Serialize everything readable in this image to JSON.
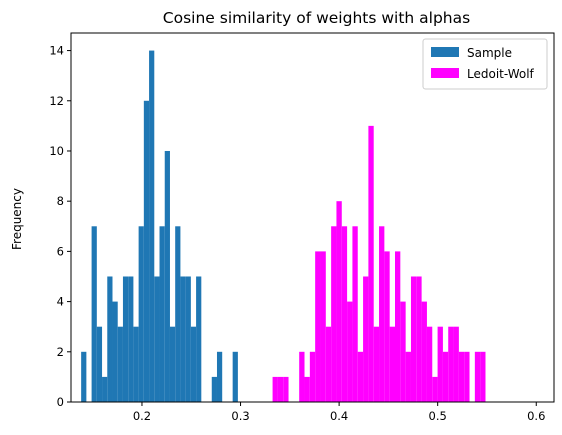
{
  "chart_data": {
    "type": "bar",
    "title": "Cosine similarity of weights with alphas",
    "xlabel": "",
    "ylabel": "Frequency",
    "xlim": [
      0.128,
      0.618
    ],
    "ylim": [
      0,
      14.7
    ],
    "xticks": [
      "0.2",
      "0.3",
      "0.4",
      "0.5",
      "0.6"
    ],
    "yticks": [
      "0",
      "2",
      "4",
      "6",
      "8",
      "10",
      "12",
      "14"
    ],
    "grid": false,
    "legend_position": "top-right",
    "series": [
      {
        "name": "Sample",
        "color": "#1f77b4",
        "bin_start": 0.1383,
        "bin_width": 0.0053,
        "counts": [
          2,
          0,
          7,
          3,
          1,
          5,
          4,
          3,
          5,
          5,
          3,
          7,
          12,
          14,
          5,
          7,
          10,
          3,
          7,
          5,
          5,
          3,
          5,
          0,
          0,
          1,
          2,
          0,
          0,
          2
        ]
      },
      {
        "name": "Ledoit-Wolf",
        "color": "#ff00ff",
        "bin_start": 0.3325,
        "bin_width": 0.0054,
        "counts": [
          1,
          1,
          1,
          0,
          0,
          2,
          1,
          2,
          6,
          6,
          3,
          7,
          8,
          7,
          4,
          7,
          2,
          5,
          11,
          3,
          7,
          6,
          3,
          6,
          4,
          2,
          5,
          5,
          4,
          3,
          1,
          3,
          2,
          3,
          3,
          2,
          2,
          0,
          2,
          2
        ]
      }
    ]
  }
}
